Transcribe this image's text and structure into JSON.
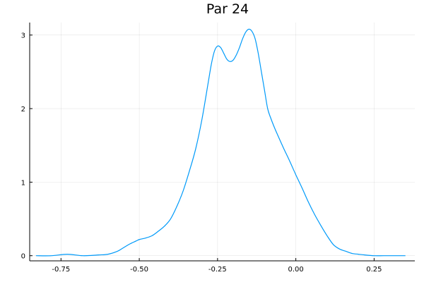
{
  "chart_data": {
    "type": "line",
    "title": "Par 24",
    "xlabel": "",
    "ylabel": "",
    "xlim": [
      -0.85,
      0.38
    ],
    "ylim": [
      -0.07,
      3.17
    ],
    "x_ticks": [
      -0.75,
      -0.5,
      -0.25,
      0.0,
      0.25
    ],
    "x_tick_labels": [
      "-0.75",
      "-0.50",
      "-0.25",
      "0.00",
      "0.25"
    ],
    "y_ticks": [
      0,
      1,
      2,
      3
    ],
    "y_tick_labels": [
      "0",
      "1",
      "2",
      "3"
    ],
    "grid": true,
    "legend": "none",
    "series_color": "#009AF9",
    "series": [
      {
        "x": [
          -0.83,
          -0.78,
          -0.73,
          -0.68,
          -0.63,
          -0.6,
          -0.57,
          -0.55,
          -0.53,
          -0.51,
          -0.5,
          -0.48,
          -0.46,
          -0.44,
          -0.42,
          -0.4,
          -0.38,
          -0.36,
          -0.34,
          -0.32,
          -0.3,
          -0.28,
          -0.27,
          -0.26,
          -0.25,
          -0.24,
          -0.23,
          -0.22,
          -0.21,
          -0.2,
          -0.19,
          -0.18,
          -0.17,
          -0.16,
          -0.15,
          -0.14,
          -0.13,
          -0.12,
          -0.11,
          -0.1,
          -0.09,
          -0.08,
          -0.07,
          -0.06,
          -0.04,
          -0.02,
          0.0,
          0.02,
          0.04,
          0.06,
          0.08,
          0.1,
          0.12,
          0.14,
          0.16,
          0.18,
          0.2,
          0.22,
          0.25,
          0.28,
          0.31,
          0.35
        ],
        "y": [
          0.0,
          0.0,
          0.02,
          0.0,
          0.01,
          0.02,
          0.06,
          0.11,
          0.16,
          0.2,
          0.22,
          0.24,
          0.27,
          0.33,
          0.4,
          0.5,
          0.67,
          0.88,
          1.15,
          1.45,
          1.85,
          2.35,
          2.6,
          2.78,
          2.85,
          2.83,
          2.75,
          2.67,
          2.64,
          2.66,
          2.73,
          2.83,
          2.95,
          3.04,
          3.08,
          3.05,
          2.95,
          2.75,
          2.5,
          2.25,
          2.0,
          1.87,
          1.76,
          1.66,
          1.47,
          1.29,
          1.1,
          0.92,
          0.73,
          0.56,
          0.41,
          0.27,
          0.15,
          0.09,
          0.06,
          0.03,
          0.02,
          0.01,
          0.0,
          0.0,
          0.0,
          0.0
        ]
      }
    ]
  }
}
